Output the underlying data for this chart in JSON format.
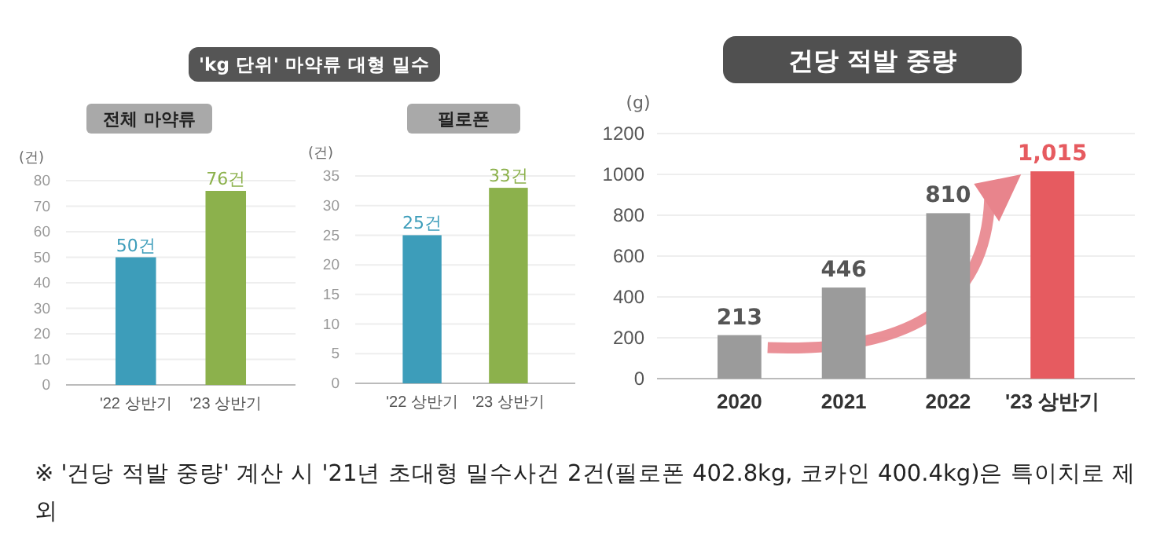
{
  "chart_data": [
    {
      "type": "bar",
      "title": "전체 마약류",
      "ylabel": "(건)",
      "categories": [
        "'22 상반기",
        "'23 상반기"
      ],
      "values": [
        50,
        76
      ],
      "colors": [
        "#3d9dba",
        "#8cb14c"
      ],
      "value_labels": [
        "50건",
        "76건"
      ],
      "ylim": [
        0,
        80
      ],
      "yticks": [
        0,
        10,
        20,
        30,
        40,
        50,
        60,
        70,
        80
      ],
      "grid": "y",
      "annotations": [
        "'kg 단위' 마약류 대형 밀수"
      ]
    },
    {
      "type": "bar",
      "title": "필로폰",
      "ylabel": "(건)",
      "categories": [
        "'22 상반기",
        "'23 상반기"
      ],
      "values": [
        25,
        33
      ],
      "colors": [
        "#3d9dba",
        "#8cb14c"
      ],
      "value_labels": [
        "25건",
        "33건"
      ],
      "ylim": [
        0,
        35
      ],
      "yticks": [
        0,
        5,
        10,
        15,
        20,
        25,
        30,
        35
      ],
      "grid": "y"
    },
    {
      "type": "bar",
      "title": "건당 적발 중량",
      "ylabel": "(g)",
      "categories": [
        "2020",
        "2021",
        "2022",
        "'23 상반기"
      ],
      "values": [
        213,
        446,
        810,
        1015
      ],
      "colors": [
        "#9b9b9b",
        "#9b9b9b",
        "#9b9b9b",
        "#e65b60"
      ],
      "value_labels": [
        "213",
        "446",
        "810",
        "1,015"
      ],
      "ylim": [
        0,
        1200
      ],
      "yticks": [
        0,
        200,
        400,
        600,
        800,
        1000,
        1200
      ],
      "grid": "y",
      "annotations": [
        "※ '건당 적발 중량' 계산 시 '21년 초대형 밀수사건 2건(필로폰 402.8kg, 코카인 400.4kg)은 특이치로 제외"
      ]
    }
  ]
}
